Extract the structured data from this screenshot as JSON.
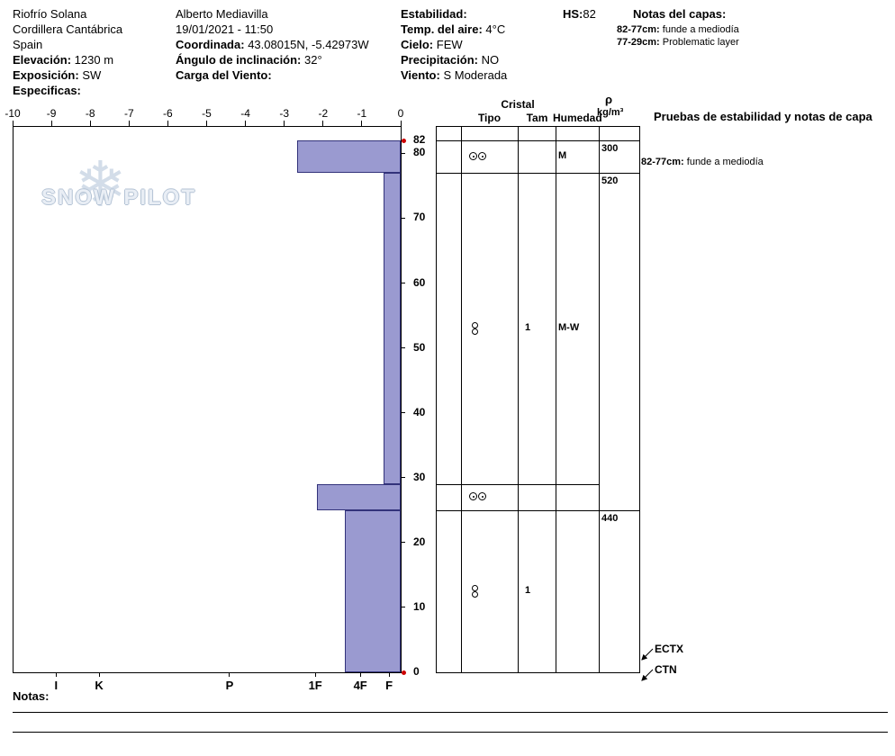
{
  "header": {
    "location": {
      "site": "Riofrío Solana",
      "range": "Cordillera Cantábrica",
      "country": "Spain",
      "elevation_label": "Elevación:",
      "elevation_value": "1230 m",
      "aspect_label": "Exposición:",
      "aspect_value": "SW",
      "specifics_label": "Especificas:"
    },
    "observer": {
      "name": "Alberto Mediavilla",
      "datetime": "19/01/2021 - 11:50",
      "coord_label": "Coordinada:",
      "coord_value": "43.08015N, -5.42973W",
      "slope_label": "Ángulo de inclinación:",
      "slope_value": "32°",
      "windload_label": "Carga del Viento:"
    },
    "weather": {
      "stability_label": "Estabilidad:",
      "airtemp_label": "Temp. del aire:",
      "airtemp_value": "4°C",
      "sky_label": "Cielo:",
      "sky_value": "FEW",
      "precip_label": "Precipitación:",
      "precip_value": "NO",
      "wind_label": "Viento:",
      "wind_value": "S Moderada"
    },
    "hs_label": "HS:",
    "hs_value": "82",
    "layer_notes_title": "Notas del capas:",
    "layer_notes": [
      {
        "range": "82-77cm:",
        "text": "funde a mediodía"
      },
      {
        "range": "77-29cm:",
        "text": "Problematic layer"
      }
    ]
  },
  "watermark": "SNOW PILOT",
  "colors": {
    "bar_fill": "#9a9ad0",
    "bar_border": "#32327a",
    "marker": "#cc0000"
  },
  "chart_data": {
    "type": "bar",
    "title": "Snow pit hardness profile",
    "total_depth_cm": 82,
    "x_axis": {
      "ticks": [
        -10,
        -9,
        -8,
        -7,
        -6,
        -5,
        -4,
        -3,
        -2,
        -1,
        0
      ]
    },
    "depth_ticks": [
      0,
      10,
      20,
      30,
      40,
      50,
      60,
      70,
      80,
      82
    ],
    "hardness_axis": {
      "labels": [
        "I",
        "K",
        "P",
        "1F",
        "4F",
        "F"
      ],
      "positions": [
        -8.88,
        -7.77,
        -4.41,
        -2.2,
        -1.04,
        -0.3
      ]
    },
    "layers": [
      {
        "top_cm": 82,
        "bottom_cm": 77,
        "hardness": -2.67,
        "grain_symbol": "double-circle-horizontal",
        "size": "",
        "humidity": "M",
        "density": "300",
        "line_short": false
      },
      {
        "top_cm": 77,
        "bottom_cm": 29,
        "hardness": -0.45,
        "grain_symbol": "double-circle-vertical",
        "size": "1",
        "humidity": "M-W",
        "density": "520",
        "line_short": false
      },
      {
        "top_cm": 29,
        "bottom_cm": 25,
        "hardness": -2.16,
        "grain_symbol": "double-circle-horizontal",
        "size": "",
        "humidity": "",
        "density": "",
        "line_short": true
      },
      {
        "top_cm": 25,
        "bottom_cm": 0,
        "hardness": -1.44,
        "grain_symbol": "double-circle-vertical",
        "size": "1",
        "humidity": "",
        "density": "440",
        "line_short": false
      }
    ],
    "tests": [
      {
        "label": "ECTX"
      },
      {
        "label": "CTN"
      }
    ]
  },
  "table": {
    "header": {
      "cristal": "Cristal",
      "tipo": "Tipo",
      "tam": "Tam",
      "humedad": "Humedad",
      "rho": "ρ",
      "rho_units": "kg/m³",
      "stability": "Pruebas de estabilidad y notas de capa"
    },
    "note_82_77": {
      "range": "82-77cm:",
      "text": "funde a mediodía"
    }
  },
  "footer": {
    "notes_label": "Notas:"
  }
}
